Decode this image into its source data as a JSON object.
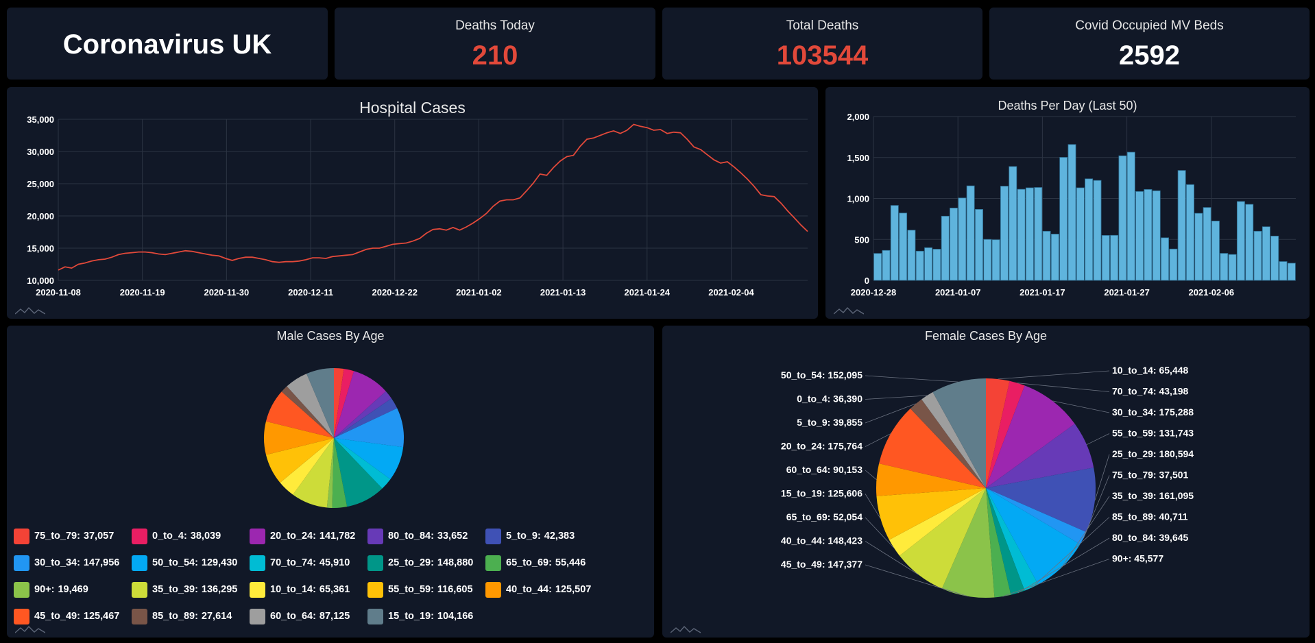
{
  "title": "Coronavirus UK",
  "kpis": [
    {
      "label": "Deaths Today",
      "value": "210",
      "color": "#e2493a"
    },
    {
      "label": "Total Deaths",
      "value": "103544",
      "color": "#e2493a"
    },
    {
      "label": "Covid Occupied MV Beds",
      "value": "2592",
      "color": "#ffffff"
    }
  ],
  "colors": {
    "line": "#e2493a",
    "bar": "#5fb4dd",
    "panel": "#111827",
    "background": "#000000"
  },
  "logo_icon": "chart-logo-icon",
  "chart_data": [
    {
      "type": "line",
      "title": "Hospital Cases",
      "x_start": "2020-11-08",
      "x_end": "2021-02-14",
      "x_ticks": [
        "2020-11-08",
        "2020-11-19",
        "2020-11-30",
        "2020-12-11",
        "2020-12-22",
        "2021-01-02",
        "2021-01-13",
        "2021-01-24",
        "2021-02-04"
      ],
      "y_ticks": [
        "10,000",
        "15,000",
        "20,000",
        "25,000",
        "30,000",
        "35,000"
      ],
      "ylim": [
        10000,
        35000
      ],
      "grid": true,
      "series": [
        {
          "values": [
            11600,
            12100,
            11900,
            12500,
            12700,
            13000,
            13200,
            13300,
            13600,
            14000,
            14200,
            14300,
            14400,
            14400,
            14300,
            14100,
            14000,
            14200,
            14400,
            14600,
            14500,
            14300,
            14100,
            13900,
            13800,
            13400,
            13100,
            13400,
            13600,
            13600,
            13400,
            13200,
            12900,
            12800,
            12900,
            12900,
            13000,
            13200,
            13500,
            13500,
            13400,
            13700,
            13800,
            13900,
            14000,
            14400,
            14800,
            15000,
            15000,
            15300,
            15600,
            15700,
            15800,
            16100,
            16500,
            17300,
            17900,
            18000,
            17800,
            18200,
            17800,
            18300,
            18900,
            19600,
            20400,
            21500,
            22300,
            22500,
            22500,
            22800,
            23900,
            25100,
            26500,
            26300,
            27500,
            28500,
            29200,
            29400,
            30800,
            31900,
            32100,
            32500,
            32900,
            33200,
            32800,
            33300,
            34200,
            33900,
            33700,
            33300,
            33400,
            32800,
            33000,
            32900,
            31900,
            30700,
            30300,
            29500,
            28700,
            28200,
            28400,
            27600,
            26700,
            25700,
            24600,
            23300,
            23100,
            23000,
            22000,
            20800,
            19700,
            18600,
            17600
          ]
        }
      ]
    },
    {
      "type": "bar",
      "title": "Deaths Per Day (Last 50)",
      "x_ticks": [
        "2020-12-28",
        "2021-01-07",
        "2021-01-17",
        "2021-01-27",
        "2021-02-06"
      ],
      "y_ticks": [
        "0",
        "500",
        "1,000",
        "1,500",
        "2,000"
      ],
      "ylim": [
        0,
        2000
      ],
      "grid": true,
      "values": [
        329,
        366,
        915,
        822,
        613,
        357,
        399,
        381,
        784,
        883,
        1006,
        1154,
        867,
        500,
        496,
        1150,
        1390,
        1112,
        1130,
        1134,
        600,
        565,
        1502,
        1659,
        1130,
        1240,
        1220,
        549,
        550,
        1521,
        1565,
        1085,
        1110,
        1094,
        520,
        383,
        1342,
        1169,
        819,
        890,
        725,
        330,
        316,
        963,
        928,
        600,
        655,
        541,
        230,
        210
      ]
    },
    {
      "type": "pie",
      "title": "Male Cases By Age",
      "legend_placement": "bottom",
      "slices": [
        {
          "label": "75_to_79:",
          "value": "37,057",
          "num": 37057,
          "color": "#f44336"
        },
        {
          "label": "0_to_4:",
          "value": "38,039",
          "num": 38039,
          "color": "#e91e63"
        },
        {
          "label": "20_to_24:",
          "value": "141,782",
          "num": 141782,
          "color": "#9c27b0"
        },
        {
          "label": "80_to_84:",
          "value": "33,652",
          "num": 33652,
          "color": "#673ab7"
        },
        {
          "label": "5_to_9:",
          "value": "42,383",
          "num": 42383,
          "color": "#3f51b5"
        },
        {
          "label": "30_to_34:",
          "value": "147,956",
          "num": 147956,
          "color": "#2196f3"
        },
        {
          "label": "50_to_54:",
          "value": "129,430",
          "num": 129430,
          "color": "#03a9f4"
        },
        {
          "label": "70_to_74:",
          "value": "45,910",
          "num": 45910,
          "color": "#00bcd4"
        },
        {
          "label": "25_to_29:",
          "value": "148,880",
          "num": 148880,
          "color": "#009688"
        },
        {
          "label": "65_to_69:",
          "value": "55,446",
          "num": 55446,
          "color": "#4caf50"
        },
        {
          "label": "90+:",
          "value": "19,469",
          "num": 19469,
          "color": "#8bc34a"
        },
        {
          "label": "35_to_39:",
          "value": "136,295",
          "num": 136295,
          "color": "#cddc39"
        },
        {
          "label": "10_to_14:",
          "value": "65,361",
          "num": 65361,
          "color": "#ffeb3b"
        },
        {
          "label": "55_to_59:",
          "value": "116,605",
          "num": 116605,
          "color": "#ffc107"
        },
        {
          "label": "40_to_44:",
          "value": "125,507",
          "num": 125507,
          "color": "#ff9800"
        },
        {
          "label": "45_to_49:",
          "value": "125,467",
          "num": 125467,
          "color": "#ff5722"
        },
        {
          "label": "85_to_89:",
          "value": "27,614",
          "num": 27614,
          "color": "#795548"
        },
        {
          "label": "60_to_64:",
          "value": "87,125",
          "num": 87125,
          "color": "#9e9e9e"
        },
        {
          "label": "15_to_19:",
          "value": "104,166",
          "num": 104166,
          "color": "#607d8b"
        }
      ]
    },
    {
      "type": "pie",
      "title": "Female Cases By Age",
      "slices": [
        {
          "label": "10_to_14: 65,448",
          "num": 65448,
          "color": "#f44336",
          "side": "right"
        },
        {
          "label": "70_to_74: 43,198",
          "num": 43198,
          "color": "#e91e63",
          "side": "right"
        },
        {
          "label": "30_to_34: 175,288",
          "num": 175288,
          "color": "#9c27b0",
          "side": "right"
        },
        {
          "label": "55_to_59: 131,743",
          "num": 131743,
          "color": "#673ab7",
          "side": "right"
        },
        {
          "label": "25_to_29: 180,594",
          "num": 180594,
          "color": "#3f51b5",
          "side": "right"
        },
        {
          "label": "75_to_79: 37,501",
          "num": 37501,
          "color": "#2196f3",
          "side": "right"
        },
        {
          "label": "35_to_39: 161,095",
          "num": 161095,
          "color": "#03a9f4",
          "side": "right"
        },
        {
          "label": "85_to_89: 40,711",
          "num": 40711,
          "color": "#00bcd4",
          "side": "right"
        },
        {
          "label": "80_to_84: 39,645",
          "num": 39645,
          "color": "#009688",
          "side": "right"
        },
        {
          "label": "90+: 45,577",
          "num": 45577,
          "color": "#4caf50",
          "side": "right"
        },
        {
          "label": "45_to_49: 147,377",
          "num": 147377,
          "color": "#8bc34a",
          "side": "left"
        },
        {
          "label": "40_to_44: 148,423",
          "num": 148423,
          "color": "#cddc39",
          "side": "left"
        },
        {
          "label": "65_to_69: 52,054",
          "num": 52054,
          "color": "#ffeb3b",
          "side": "left"
        },
        {
          "label": "15_to_19: 125,606",
          "num": 125606,
          "color": "#ffc107",
          "side": "left"
        },
        {
          "label": "60_to_64: 90,153",
          "num": 90153,
          "color": "#ff9800",
          "side": "left"
        },
        {
          "label": "20_to_24: 175,764",
          "num": 175764,
          "color": "#ff5722",
          "side": "left"
        },
        {
          "label": "5_to_9: 39,855",
          "num": 39855,
          "color": "#795548",
          "side": "left"
        },
        {
          "label": "0_to_4: 36,390",
          "num": 36390,
          "color": "#9e9e9e",
          "side": "left"
        },
        {
          "label": "50_to_54: 152,095",
          "num": 152095,
          "color": "#607d8b",
          "side": "left"
        }
      ]
    }
  ]
}
